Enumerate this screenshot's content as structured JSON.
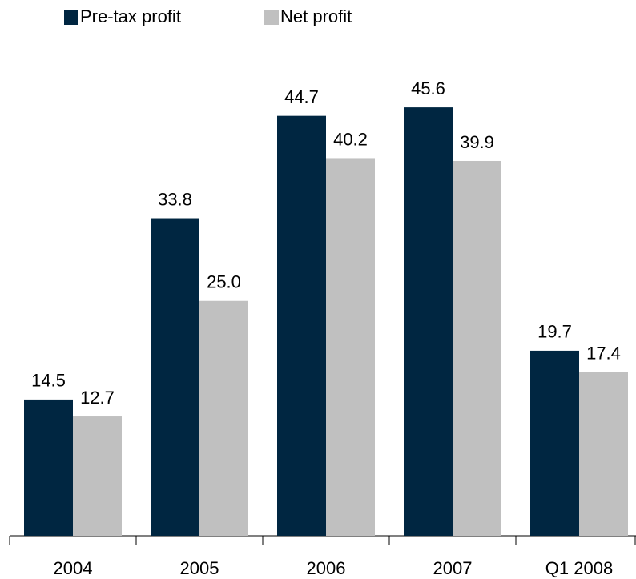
{
  "chart_data": {
    "type": "bar",
    "categories": [
      "2004",
      "2005",
      "2006",
      "2007",
      "Q1 2008"
    ],
    "series": [
      {
        "name": "Pre-tax profit",
        "color": "#002641",
        "values": [
          14.5,
          33.8,
          44.7,
          45.6,
          19.7
        ],
        "value_labels": [
          "14.5",
          "33.8",
          "44.7",
          "45.6",
          "19.7"
        ]
      },
      {
        "name": "Net profit",
        "color": "#c0c0c0",
        "values": [
          12.7,
          25.0,
          40.2,
          39.9,
          17.4
        ],
        "value_labels": [
          "12.7",
          "25.0",
          "40.2",
          "39.9",
          "17.4"
        ]
      }
    ]
  }
}
